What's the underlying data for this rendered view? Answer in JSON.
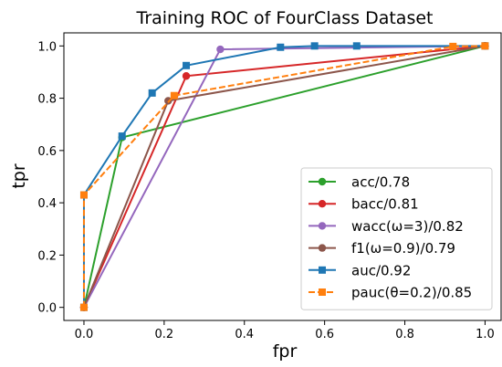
{
  "chart_data": {
    "type": "line",
    "title": "Training ROC of FourClass Dataset",
    "xlabel": "fpr",
    "ylabel": "tpr",
    "xlim": [
      -0.05,
      1.04
    ],
    "ylim": [
      -0.05,
      1.05
    ],
    "xticks": [
      "0.0",
      "0.2",
      "0.4",
      "0.6",
      "0.8",
      "1.0"
    ],
    "yticks": [
      "0.0",
      "0.2",
      "0.4",
      "0.6",
      "0.8",
      "1.0"
    ],
    "grid": false,
    "legend_position": "lower-right",
    "series": [
      {
        "name": "acc/0.78",
        "color": "#2ca02c",
        "marker": "circle",
        "dash": "solid",
        "x": [
          0.0,
          0.095,
          1.0
        ],
        "y": [
          0.0,
          0.65,
          1.0
        ]
      },
      {
        "name": "bacc/0.81",
        "color": "#d62728",
        "marker": "circle",
        "dash": "solid",
        "x": [
          0.0,
          0.255,
          1.0
        ],
        "y": [
          0.0,
          0.885,
          1.0
        ]
      },
      {
        "name": "wacc(ω=3)/0.82",
        "color": "#9467bd",
        "marker": "circle",
        "dash": "solid",
        "x": [
          0.0,
          0.34,
          1.0
        ],
        "y": [
          0.0,
          0.987,
          1.0
        ]
      },
      {
        "name": "f1(ω=0.9)/0.79",
        "color": "#8c564b",
        "marker": "circle",
        "dash": "solid",
        "x": [
          0.0,
          0.21,
          1.0
        ],
        "y": [
          0.0,
          0.79,
          1.0
        ]
      },
      {
        "name": "auc/0.92",
        "color": "#1f77b4",
        "marker": "square",
        "dash": "solid",
        "x": [
          0.0,
          0.0,
          0.095,
          0.17,
          0.255,
          0.49,
          0.575,
          0.68,
          1.0
        ],
        "y": [
          0.0,
          0.43,
          0.655,
          0.82,
          0.925,
          0.995,
          1.0,
          1.0,
          1.0
        ]
      },
      {
        "name": "pauc(θ=0.2)/0.85",
        "color": "#ff7f0e",
        "marker": "square",
        "dash": "dashed",
        "x": [
          0.0,
          0.0,
          0.225,
          0.92,
          1.0
        ],
        "y": [
          0.0,
          0.43,
          0.81,
          0.998,
          1.0
        ]
      }
    ]
  }
}
